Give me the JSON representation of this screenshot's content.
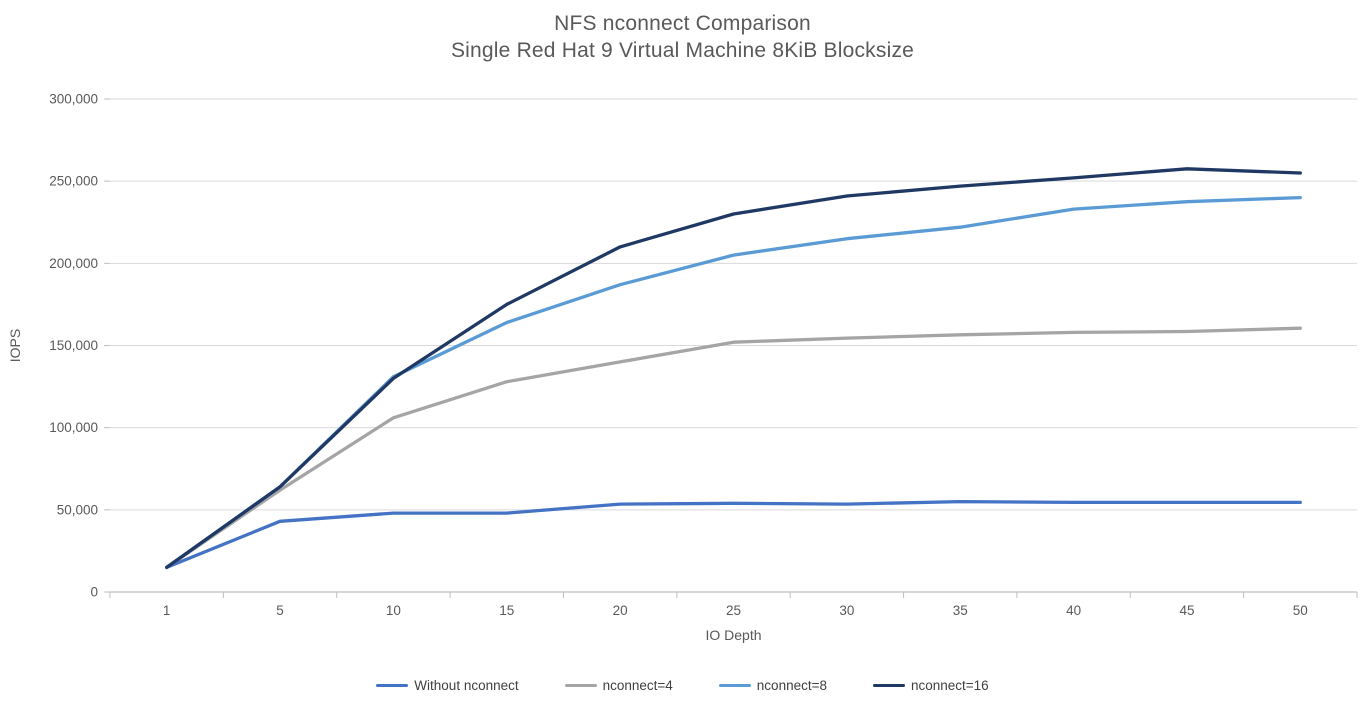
{
  "chart_data": {
    "type": "line",
    "title": "NFS nconnect Comparison",
    "subtitle": "Single Red Hat 9 Virtual Machine 8KiB Blocksize",
    "xlabel": "IO Depth",
    "ylabel": "IOPS",
    "categories": [
      1,
      5,
      10,
      15,
      20,
      25,
      30,
      35,
      40,
      45,
      50
    ],
    "series": [
      {
        "name": "Without nconnect",
        "color": "#4472C4",
        "values": [
          15000,
          43000,
          48000,
          48000,
          53500,
          54000,
          53500,
          55000,
          54500,
          54500,
          54500
        ]
      },
      {
        "name": "nconnect=4",
        "color": "#A5A5A5",
        "values": [
          15000,
          62000,
          106000,
          128000,
          140000,
          152000,
          154500,
          156500,
          158000,
          158500,
          160500
        ]
      },
      {
        "name": "nconnect=8",
        "color": "#5B9BD5",
        "values": [
          15000,
          64000,
          131000,
          164000,
          187000,
          205000,
          215000,
          222000,
          233000,
          237500,
          240000
        ]
      },
      {
        "name": "nconnect=16",
        "color": "#1F3864",
        "values": [
          15000,
          64000,
          130000,
          175000,
          210000,
          230000,
          241000,
          247000,
          252000,
          257500,
          255000
        ]
      }
    ],
    "ylim": [
      0,
      300000
    ],
    "ytick_step": 50000,
    "ytick_labels": [
      "0",
      "50,000",
      "100,000",
      "150,000",
      "200,000",
      "250,000",
      "300,000"
    ],
    "grid": true,
    "legend_position": "bottom",
    "colors": {
      "grid": "#D9D9D9",
      "axis": "#BFBFBF",
      "tick_text": "#595959",
      "title_text": "#595959",
      "legend_text": "#404040",
      "background": "#FFFFFF"
    }
  }
}
